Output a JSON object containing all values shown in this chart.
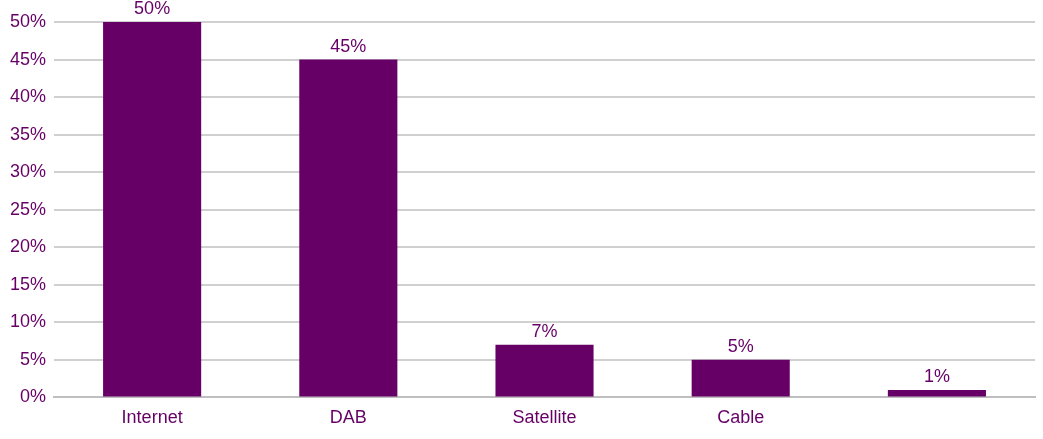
{
  "chart_data": {
    "type": "bar",
    "categories": [
      "Internet",
      "DAB",
      "Satellite",
      "Cable",
      null
    ],
    "values": [
      50,
      45,
      7,
      5,
      1
    ],
    "color": "#660066",
    "value_labels": [
      "50%",
      "45%",
      "7%",
      "5%",
      "1%"
    ],
    "ylim": [
      0,
      50
    ],
    "yticks": [
      {
        "value": 0,
        "label": "0%"
      },
      {
        "value": 5,
        "label": "5%"
      },
      {
        "value": 10,
        "label": "10%"
      },
      {
        "value": 15,
        "label": "15%"
      },
      {
        "value": 20,
        "label": "20%"
      },
      {
        "value": 25,
        "label": "25%"
      },
      {
        "value": 30,
        "label": "30%"
      },
      {
        "value": 35,
        "label": "35%"
      },
      {
        "value": 40,
        "label": "40%"
      },
      {
        "value": 45,
        "label": "45%"
      },
      {
        "value": 50,
        "label": "50%"
      }
    ],
    "grid": "y"
  }
}
